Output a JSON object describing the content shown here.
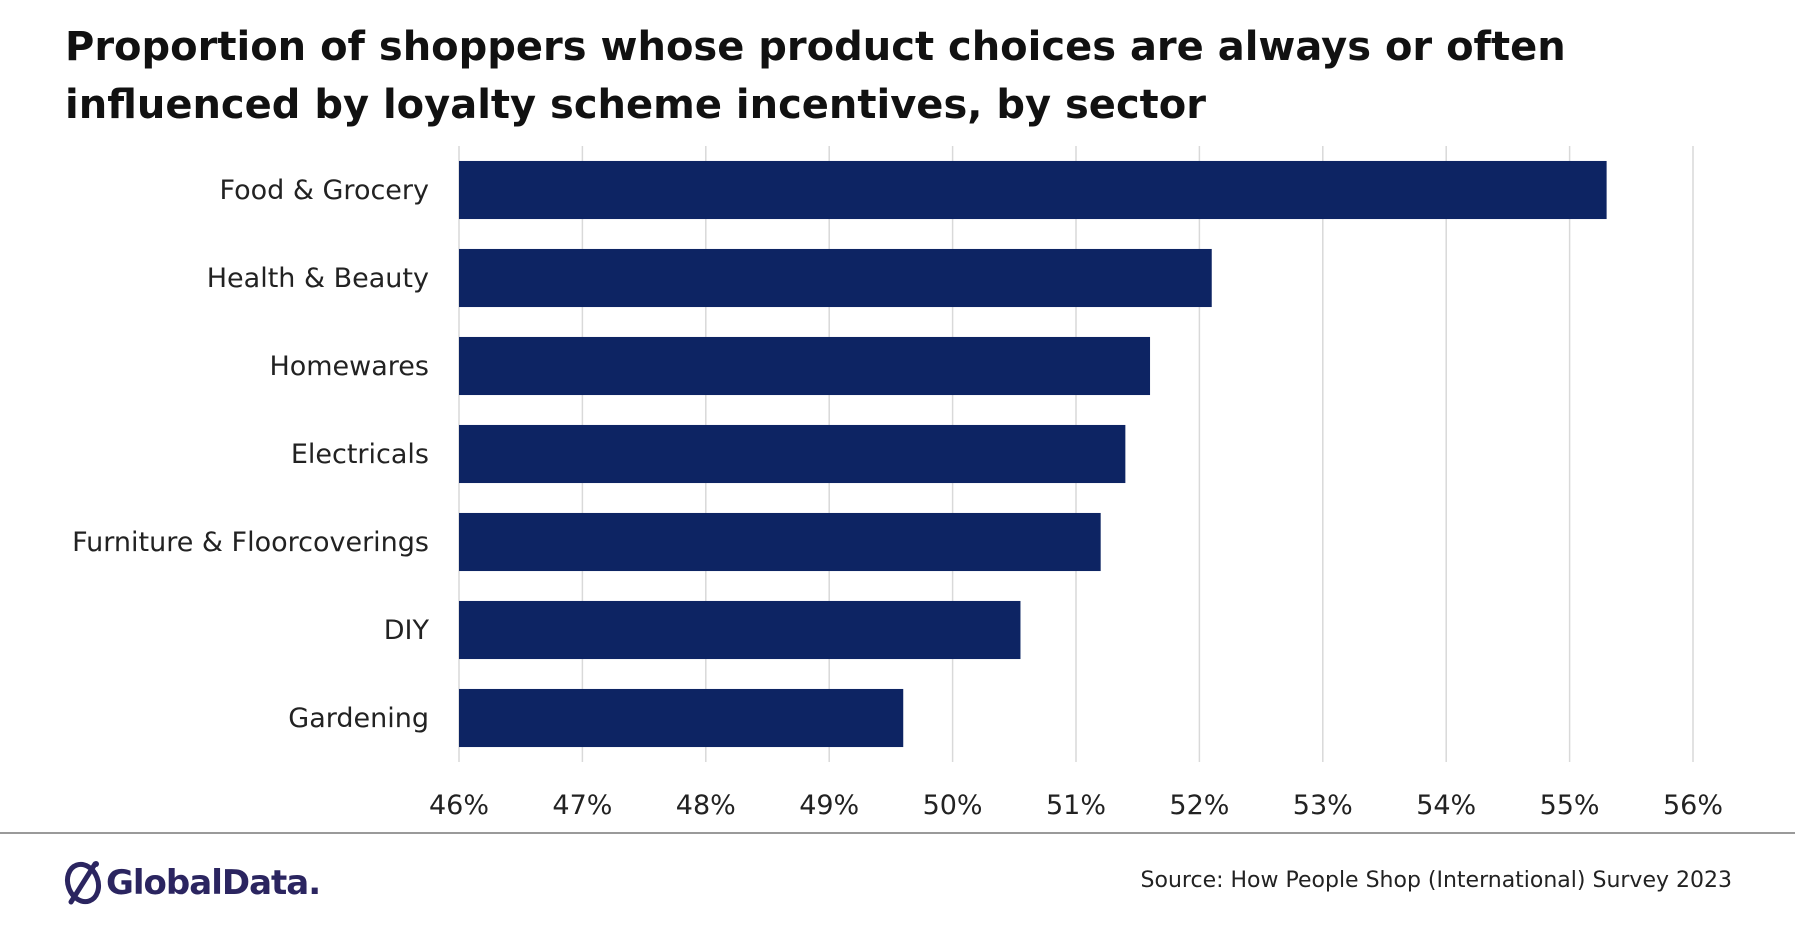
{
  "chart_data": {
    "type": "bar",
    "orientation": "horizontal",
    "title": "Proportion of shoppers whose product choices are always or often influenced by loyalty scheme incentives, by sector",
    "categories": [
      "Food & Grocery",
      "Health & Beauty",
      "Homewares",
      "Electricals",
      "Furniture & Floorcoverings",
      "DIY",
      "Gardening"
    ],
    "values": [
      55.3,
      52.1,
      51.6,
      51.4,
      51.2,
      50.55,
      49.6
    ],
    "xlim": [
      46,
      56
    ],
    "xticks": [
      "46%",
      "47%",
      "48%",
      "49%",
      "50%",
      "51%",
      "52%",
      "53%",
      "54%",
      "55%",
      "56%"
    ],
    "xlabel": "",
    "ylabel": "",
    "grid": "vertical",
    "legend": "none",
    "bar_color": "#0d2463"
  },
  "footer": {
    "source": "Source: How People Shop (International) Survey 2023",
    "logo_text": "GlobalData."
  },
  "colors": {
    "bar": "#0d2463",
    "logo": "#2b2560",
    "grid": "#d9d9d9"
  }
}
